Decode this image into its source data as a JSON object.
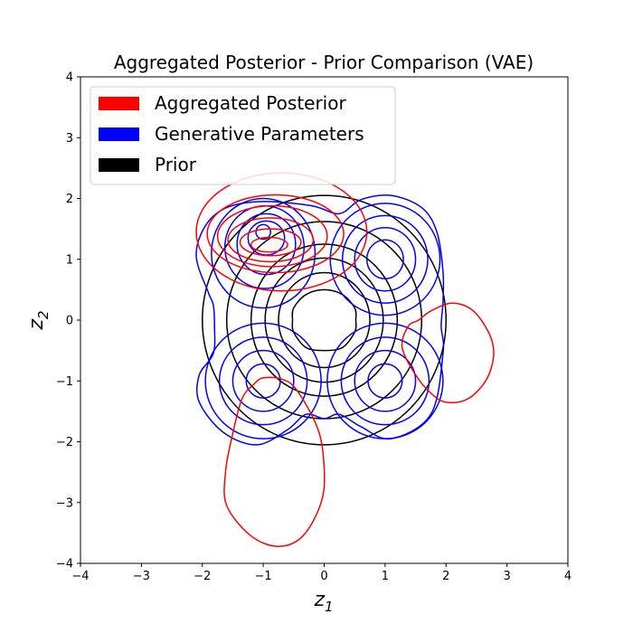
{
  "chart_data": {
    "type": "contour",
    "title": "Aggregated Posterior - Prior Comparison (VAE)",
    "xlabel": "z",
    "xlabel_sub": "1",
    "ylabel": "z",
    "ylabel_sub": "2",
    "xlim": [
      -4,
      4
    ],
    "ylim": [
      -4,
      4
    ],
    "xticks": [
      {
        "value": -4,
        "label": "−4"
      },
      {
        "value": -3,
        "label": "−3"
      },
      {
        "value": -2,
        "label": "−2"
      },
      {
        "value": -1,
        "label": "−1"
      },
      {
        "value": 0,
        "label": "0"
      },
      {
        "value": 1,
        "label": "1"
      },
      {
        "value": 2,
        "label": "2"
      },
      {
        "value": 3,
        "label": "3"
      },
      {
        "value": 4,
        "label": "4"
      }
    ],
    "yticks": [
      {
        "value": -4,
        "label": "−4"
      },
      {
        "value": -3,
        "label": "−3"
      },
      {
        "value": -2,
        "label": "−2"
      },
      {
        "value": -1,
        "label": "−1"
      },
      {
        "value": 0,
        "label": "0"
      },
      {
        "value": 1,
        "label": "1"
      },
      {
        "value": 2,
        "label": "2"
      },
      {
        "value": 3,
        "label": "3"
      },
      {
        "value": 4,
        "label": "4"
      }
    ],
    "grid": false,
    "legend_position": "top-left",
    "legend": [
      {
        "label": "Aggregated Posterior",
        "color": "#ff0000"
      },
      {
        "label": "Generative Parameters",
        "color": "#0000ff"
      },
      {
        "label": "Prior",
        "color": "#000000"
      }
    ],
    "series": [
      {
        "name": "Prior",
        "color": "#000000",
        "contours": [
          {
            "type": "ellipse",
            "center": [
              0,
              0
            ],
            "radii": [
              2.0,
              2.05
            ]
          },
          {
            "type": "ellipse",
            "center": [
              0,
              0
            ],
            "radii": [
              1.6,
              1.62
            ]
          },
          {
            "type": "ellipse",
            "center": [
              0,
              0
            ],
            "radii": [
              1.2,
              1.25
            ]
          },
          {
            "type": "ellipse",
            "center": [
              0,
              0
            ],
            "radii": [
              0.97,
              1.02
            ]
          },
          {
            "type": "ellipse",
            "center": [
              0,
              0
            ],
            "radii": [
              0.75,
              0.78
            ]
          },
          {
            "type": "path",
            "points": [
              [
                0,
                0.5
              ],
              [
                0.3,
                0.42
              ],
              [
                0.5,
                0.2
              ],
              [
                0.52,
                0
              ],
              [
                0.5,
                -0.2
              ],
              [
                0.3,
                -0.45
              ],
              [
                0,
                -0.5
              ],
              [
                -0.3,
                -0.45
              ],
              [
                -0.5,
                -0.2
              ],
              [
                -0.52,
                0
              ],
              [
                -0.5,
                0.2
              ],
              [
                -0.3,
                0.42
              ]
            ],
            "closed": true
          }
        ]
      },
      {
        "name": "Generative Parameters",
        "color": "#0000ff",
        "contours": [
          {
            "type": "path",
            "points": [
              [
                -1.0,
                1.95
              ],
              [
                -0.2,
                1.88
              ],
              [
                0.25,
                1.75
              ],
              [
                0.6,
                1.98
              ],
              [
                1.1,
                2.05
              ],
              [
                1.6,
                1.85
              ],
              [
                1.85,
                1.45
              ],
              [
                1.95,
                0.8
              ],
              [
                1.95,
                0.3
              ],
              [
                1.92,
                -0.1
              ],
              [
                1.95,
                -0.55
              ],
              [
                1.75,
                -1.55
              ],
              [
                1.1,
                -1.95
              ],
              [
                0.6,
                -1.75
              ],
              [
                0.25,
                -1.55
              ],
              [
                0.0,
                -1.62
              ],
              [
                -0.3,
                -1.55
              ],
              [
                -0.6,
                -1.8
              ],
              [
                -1.1,
                -2.05
              ],
              [
                -1.65,
                -1.85
              ],
              [
                -2.05,
                -1.35
              ],
              [
                -2.05,
                -0.9
              ],
              [
                -1.82,
                -0.55
              ],
              [
                -1.8,
                -0.1
              ],
              [
                -1.82,
                0.25
              ],
              [
                -1.9,
                0.45
              ],
              [
                -2.1,
                1.05
              ],
              [
                -1.95,
                1.55
              ],
              [
                -1.6,
                1.85
              ]
            ],
            "closed": true
          },
          {
            "type": "ellipse",
            "center": [
              -1.0,
              1.1
            ],
            "radii": [
              0.85,
              0.9
            ]
          },
          {
            "type": "ellipse",
            "center": [
              -0.98,
              1.2
            ],
            "radii": [
              0.65,
              0.68
            ]
          },
          {
            "type": "ellipse",
            "center": [
              -0.95,
              1.25
            ],
            "radii": [
              0.48,
              0.5
            ]
          },
          {
            "type": "ellipse",
            "center": [
              -0.95,
              1.35
            ],
            "radii": [
              0.3,
              0.28
            ]
          },
          {
            "type": "ellipse",
            "center": [
              -1.0,
              1.45
            ],
            "radii": [
              0.12,
              0.12
            ]
          },
          {
            "type": "ellipse",
            "center": [
              1.0,
              1.0
            ],
            "radii": [
              0.9,
              0.92
            ]
          },
          {
            "type": "ellipse",
            "center": [
              1.0,
              1.0
            ],
            "radii": [
              0.7,
              0.72
            ]
          },
          {
            "type": "ellipse",
            "center": [
              1.0,
              1.0
            ],
            "radii": [
              0.5,
              0.52
            ]
          },
          {
            "type": "ellipse",
            "center": [
              1.0,
              1.0
            ],
            "radii": [
              0.3,
              0.32
            ]
          },
          {
            "type": "ellipse",
            "center": [
              -1.0,
              -1.0
            ],
            "radii": [
              0.95,
              0.95
            ]
          },
          {
            "type": "ellipse",
            "center": [
              -1.0,
              -1.0
            ],
            "radii": [
              0.72,
              0.72
            ]
          },
          {
            "type": "ellipse",
            "center": [
              -1.0,
              -1.0
            ],
            "radii": [
              0.5,
              0.5
            ]
          },
          {
            "type": "ellipse",
            "center": [
              -1.0,
              -1.0
            ],
            "radii": [
              0.28,
              0.28
            ]
          },
          {
            "type": "ellipse",
            "center": [
              1.0,
              -1.0
            ],
            "radii": [
              0.95,
              0.95
            ]
          },
          {
            "type": "ellipse",
            "center": [
              1.0,
              -1.0
            ],
            "radii": [
              0.72,
              0.72
            ]
          },
          {
            "type": "ellipse",
            "center": [
              1.0,
              -1.0
            ],
            "radii": [
              0.5,
              0.5
            ]
          },
          {
            "type": "ellipse",
            "center": [
              1.0,
              -1.0
            ],
            "radii": [
              0.28,
              0.28
            ]
          }
        ]
      },
      {
        "name": "Aggregated Posterior",
        "color": "#ff0000",
        "contours": [
          {
            "type": "ellipse",
            "center": [
              -0.7,
              1.45
            ],
            "radii": [
              1.4,
              0.97
            ]
          },
          {
            "type": "ellipse",
            "center": [
              -0.8,
              1.42
            ],
            "radii": [
              1.12,
              0.64
            ]
          },
          {
            "type": "ellipse",
            "center": [
              -0.85,
              1.38
            ],
            "radii": [
              0.9,
              0.5
            ]
          },
          {
            "type": "ellipse",
            "center": [
              -0.88,
              1.32
            ],
            "radii": [
              0.7,
              0.36
            ]
          },
          {
            "type": "ellipse",
            "center": [
              -0.88,
              1.28
            ],
            "radii": [
              0.5,
              0.22
            ]
          },
          {
            "type": "ellipse",
            "center": [
              -0.9,
              1.24
            ],
            "radii": [
              0.3,
              0.12
            ]
          },
          {
            "type": "path",
            "points": [
              [
                1.55,
                0.0
              ],
              [
                1.75,
                0.15
              ],
              [
                2.1,
                0.28
              ],
              [
                2.45,
                0.15
              ],
              [
                2.72,
                -0.25
              ],
              [
                2.78,
                -0.6
              ],
              [
                2.65,
                -1.0
              ],
              [
                2.35,
                -1.3
              ],
              [
                2.0,
                -1.35
              ],
              [
                1.75,
                -1.2
              ],
              [
                1.5,
                -0.9
              ],
              [
                1.28,
                -0.45
              ],
              [
                1.38,
                -0.1
              ]
            ],
            "closed": true
          },
          {
            "type": "path",
            "points": [
              [
                -1.0,
                -0.95
              ],
              [
                -0.7,
                -0.97
              ],
              [
                -0.45,
                -1.15
              ],
              [
                -0.1,
                -1.8
              ],
              [
                0.0,
                -2.45
              ],
              [
                -0.05,
                -3.0
              ],
              [
                -0.35,
                -3.55
              ],
              [
                -0.75,
                -3.72
              ],
              [
                -1.2,
                -3.55
              ],
              [
                -1.6,
                -3.05
              ],
              [
                -1.62,
                -2.5
              ],
              [
                -1.52,
                -1.95
              ],
              [
                -1.35,
                -1.3
              ],
              [
                -1.15,
                -1.05
              ]
            ],
            "closed": true
          }
        ]
      }
    ]
  }
}
